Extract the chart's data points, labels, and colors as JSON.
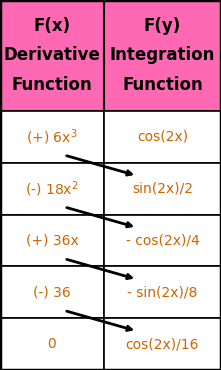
{
  "header_bg": "#FF69B4",
  "cell_bg": "#FFFFFF",
  "border_color": "#000000",
  "header_text_color": "#000000",
  "cell_text_color": "#CC6600",
  "col1_header": [
    "F(x)",
    "Derivative",
    "Function"
  ],
  "col2_header": [
    "F(y)",
    "Integration",
    "Function"
  ],
  "rows": [
    {
      "left": "(+) 6x$^3$",
      "right": "cos(2x)"
    },
    {
      "left": "(-) 18x$^2$",
      "right": "sin(2x)/2"
    },
    {
      "left": "(+) 36x",
      "right": "- cos(2x)/4"
    },
    {
      "left": "(-) 36",
      "right": "- sin(2x)/8"
    },
    {
      "left": "0",
      "right": "cos(2x)/16"
    }
  ],
  "figsize": [
    2.21,
    3.7
  ],
  "dpi": 100,
  "header_fontsize": 12,
  "cell_fontsize": 10,
  "col_split": 0.47
}
